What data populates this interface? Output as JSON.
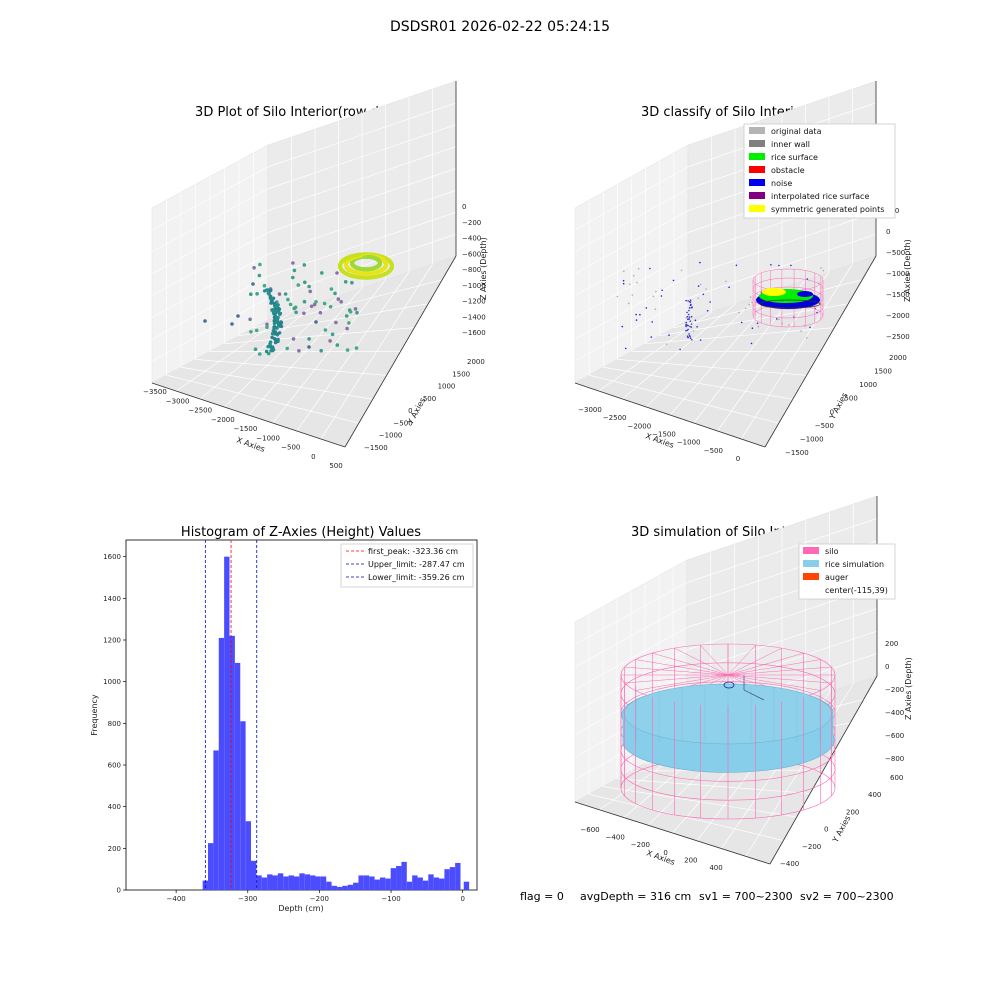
{
  "figure": {
    "suptitle": "DSDSR01 2026-02-22 05:24:15",
    "footer": {
      "flag": "flag = 0",
      "avg_depth": "avgDepth = 316 cm",
      "sv1": "sv1 = 700~2300",
      "sv2": "sv2 = 700~2300"
    }
  },
  "chart_data": [
    {
      "type": "scatter",
      "subtype": "3d",
      "title": "3D Plot of Silo Interior(row data)",
      "xlabel": "X Axies",
      "ylabel": "Y Axies",
      "zlabel": "Z Axies (Depth)",
      "xticks": [
        "−3500",
        "−3000",
        "−2500",
        "−2000",
        "−1500",
        "−1000",
        "−500",
        "0",
        "500"
      ],
      "yticks": [
        "−1500",
        "−1000",
        "−500",
        "0",
        "500",
        "1000",
        "1500",
        "2000"
      ],
      "zticks": [
        "0",
        "−200",
        "−400",
        "−600",
        "−800",
        "−1000",
        "−1200",
        "−1400",
        "−1600"
      ],
      "colormap": "viridis"
    },
    {
      "type": "scatter",
      "subtype": "3d",
      "title": "3D classify of Silo Interior",
      "xlabel": "X Axies",
      "ylabel": "Y Axies",
      "zlabel": "Z Axies (Depth)",
      "xticks": [
        "−3000",
        "−2500",
        "−2000",
        "−1500",
        "−1000",
        "−500",
        "0"
      ],
      "yticks": [
        "−1500",
        "−1000",
        "−500",
        "0",
        "500",
        "1000",
        "1500",
        "2000"
      ],
      "zticks": [
        "500",
        "0",
        "−500",
        "−1000",
        "−1500",
        "−2000",
        "−2500"
      ],
      "legend": [
        {
          "name": "original data",
          "color": "#b4b4b4"
        },
        {
          "name": "inner wall",
          "color": "#808080"
        },
        {
          "name": "rice surface",
          "color": "#00ee00"
        },
        {
          "name": "obstacle",
          "color": "#ff0000"
        },
        {
          "name": "noise",
          "color": "#0000ee"
        },
        {
          "name": "interpolated rice surface",
          "color": "#800080"
        },
        {
          "name": "symmetric generated points",
          "color": "#ffff00"
        }
      ],
      "legend_placement": "top-right"
    },
    {
      "type": "bar",
      "subtype": "histogram",
      "title": "Histogram of Z-Axies (Height) Values",
      "xlabel": "Depth (cm)",
      "ylabel": "Frequency",
      "xlim": [
        -470,
        20
      ],
      "ylim": [
        0,
        1680
      ],
      "xticks": [
        -400,
        -300,
        -200,
        -100,
        0
      ],
      "xtick_labels": [
        "−400",
        "−300",
        "−200",
        "−100",
        "0"
      ],
      "yticks": [
        0,
        200,
        400,
        600,
        800,
        1000,
        1200,
        1400,
        1600
      ],
      "bin_width": 7.5,
      "bins": [
        [
          -363,
          45
        ],
        [
          -355.5,
          225
        ],
        [
          -348,
          670
        ],
        [
          -340.5,
          1210
        ],
        [
          -333,
          1600
        ],
        [
          -325.5,
          1220
        ],
        [
          -318,
          1090
        ],
        [
          -310.5,
          810
        ],
        [
          -303,
          330
        ],
        [
          -295.5,
          140
        ],
        [
          -288,
          70
        ],
        [
          -280.5,
          60
        ],
        [
          -273,
          75
        ],
        [
          -265.5,
          70
        ],
        [
          -258,
          80
        ],
        [
          -250.5,
          65
        ],
        [
          -243,
          70
        ],
        [
          -235.5,
          65
        ],
        [
          -228,
          80
        ],
        [
          -220.5,
          75
        ],
        [
          -213,
          70
        ],
        [
          -205.5,
          65
        ],
        [
          -198,
          65
        ],
        [
          -190.5,
          40
        ],
        [
          -183,
          20
        ],
        [
          -175.5,
          15
        ],
        [
          -168,
          20
        ],
        [
          -160.5,
          25
        ],
        [
          -153,
          35
        ],
        [
          -145.5,
          70
        ],
        [
          -138,
          70
        ],
        [
          -130.5,
          65
        ],
        [
          -123,
          50
        ],
        [
          -115.5,
          60
        ],
        [
          -108,
          55
        ],
        [
          -100.5,
          105
        ],
        [
          -93,
          115
        ],
        [
          -85.5,
          135
        ],
        [
          -78,
          40
        ]
      ],
      "color": "#4c4cff",
      "lines": [
        {
          "name": "first_peak: -323.36 cm",
          "x": -323.36,
          "color": "#ff0000"
        },
        {
          "name": "Upper_limit: -287.47 cm",
          "x": -287.47,
          "color": "#0000cc"
        },
        {
          "name": "Lower_limit: -359.26 cm",
          "x": -359.26,
          "color": "#0000cc"
        }
      ],
      "legend_placement": "top-right"
    },
    {
      "type": "scatter",
      "subtype": "3d-surface",
      "title": "3D simulation of Silo Interior",
      "xlabel": "X Axies",
      "ylabel": "Y Axies",
      "zlabel": "Z Axies (Depth)",
      "xticks": [
        "−600",
        "−400",
        "−200",
        "0",
        "200",
        "400"
      ],
      "yticks": [
        "−400",
        "−200",
        "0",
        "200",
        "400",
        "600"
      ],
      "zticks": [
        "200",
        "0",
        "−200",
        "−400",
        "−600",
        "−800"
      ],
      "legend": [
        {
          "name": "silo",
          "color": "#ff69b4"
        },
        {
          "name": "rice simulation",
          "color": "#87ceeb"
        },
        {
          "name": "auger",
          "color": "#ff4500"
        },
        {
          "name": "center(-115,39)",
          "color": ""
        }
      ],
      "legend_placement": "top-right"
    }
  ]
}
